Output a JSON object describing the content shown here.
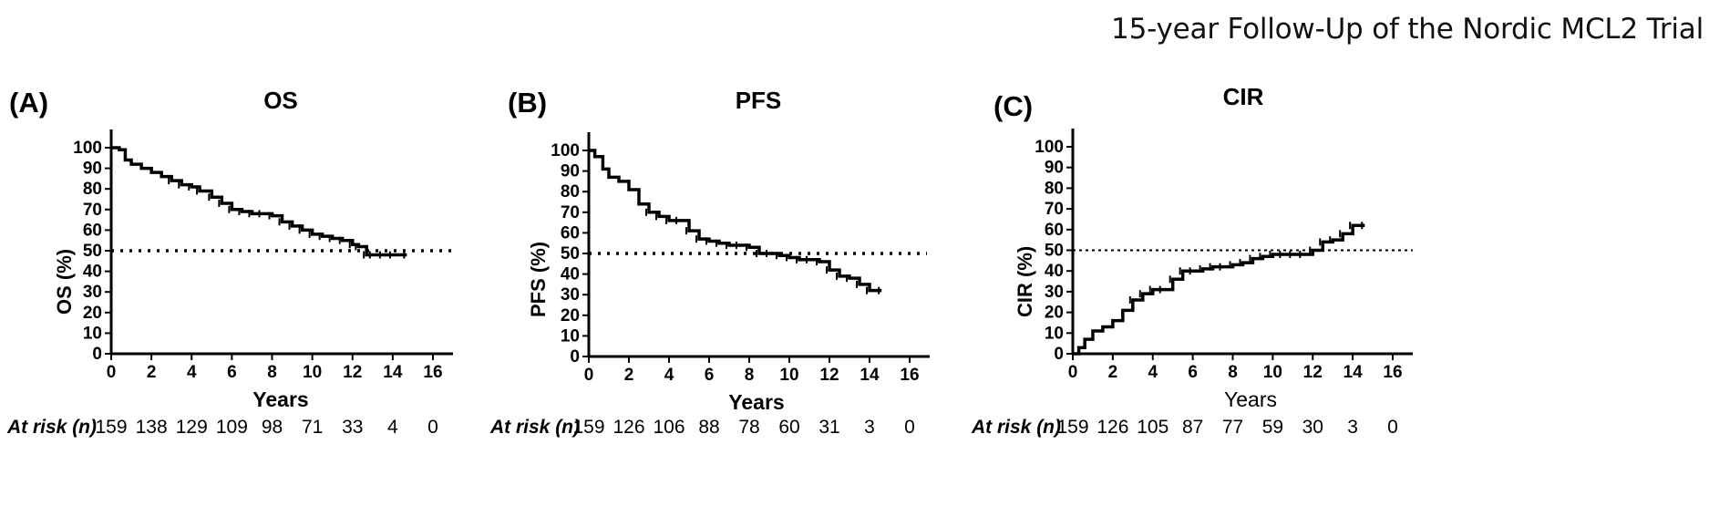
{
  "header": {
    "title": "15-year Follow-Up of the Nordic MCL2 Trial"
  },
  "chart_data": [
    {
      "type": "line",
      "panel": "(A)",
      "title": "OS",
      "xlabel": "Years",
      "ylabel": "OS (%)",
      "xlim": [
        0,
        16
      ],
      "ylim": [
        0,
        100
      ],
      "xticks": [
        0,
        2,
        4,
        6,
        8,
        10,
        12,
        14,
        16
      ],
      "yticks": [
        0,
        10,
        20,
        30,
        40,
        50,
        60,
        70,
        80,
        90,
        100
      ],
      "reference_line": 50,
      "series": [
        {
          "x": [
            0,
            0.4,
            0.7,
            1,
            1.5,
            2,
            2.5,
            3,
            3.5,
            4,
            4.4,
            5,
            5.5,
            6,
            6.5,
            7,
            7.5,
            8,
            8.5,
            9,
            9.5,
            10,
            10.5,
            11,
            11.5,
            12,
            12.3,
            12.7,
            13,
            13.5,
            14,
            14.7
          ],
          "y": [
            100,
            99,
            94,
            92,
            90,
            88,
            86,
            84,
            82,
            81,
            79,
            76,
            73,
            70,
            69,
            68,
            68,
            67,
            64,
            62,
            60,
            58,
            57,
            56,
            55,
            53,
            52,
            48,
            48,
            48,
            48,
            48
          ]
        }
      ],
      "at_risk": {
        "label": "At risk (n)",
        "times": [
          0,
          2,
          4,
          6,
          8,
          10,
          12,
          14,
          16
        ],
        "values": [
          "159",
          "138",
          "129",
          "109",
          "98",
          "71",
          "33",
          "4",
          "0"
        ]
      }
    },
    {
      "type": "line",
      "panel": "(B)",
      "title": "PFS",
      "xlabel": "Years",
      "ylabel": "PFS (%)",
      "xlim": [
        0,
        16
      ],
      "ylim": [
        0,
        100
      ],
      "xticks": [
        0,
        2,
        4,
        6,
        8,
        10,
        12,
        14,
        16
      ],
      "yticks": [
        0,
        10,
        20,
        30,
        40,
        50,
        60,
        70,
        80,
        90,
        100
      ],
      "reference_line": 50,
      "series": [
        {
          "x": [
            0,
            0.3,
            0.7,
            1,
            1.5,
            2,
            2.5,
            3,
            3.5,
            4,
            4.5,
            5,
            5.5,
            6,
            6.5,
            7,
            7.5,
            8,
            8.5,
            9,
            9.5,
            10,
            10.5,
            11,
            11.5,
            12,
            12.5,
            13,
            13.5,
            14,
            14.6
          ],
          "y": [
            100,
            97,
            91,
            87,
            85,
            81,
            74,
            70,
            68,
            66,
            66,
            61,
            57,
            56,
            55,
            54,
            54,
            53,
            50,
            50,
            49,
            48,
            47,
            47,
            46,
            42,
            39,
            38,
            35,
            32,
            32
          ]
        }
      ],
      "at_risk": {
        "label": "At risk (n)",
        "times": [
          0,
          2,
          4,
          6,
          8,
          10,
          12,
          14,
          16
        ],
        "values": [
          "159",
          "126",
          "106",
          "88",
          "78",
          "60",
          "31",
          "3",
          "0"
        ]
      }
    },
    {
      "type": "line",
      "panel": "(C)",
      "title": "CIR",
      "xlabel": "Years",
      "ylabel": "CIR (%)",
      "xlim": [
        0,
        16
      ],
      "ylim": [
        0,
        100
      ],
      "xticks": [
        0,
        2,
        4,
        6,
        8,
        10,
        12,
        14,
        16
      ],
      "yticks": [
        0,
        10,
        20,
        30,
        40,
        50,
        60,
        70,
        80,
        90,
        100
      ],
      "reference_line": 50,
      "series": [
        {
          "x": [
            0,
            0.3,
            0.6,
            1,
            1.5,
            2,
            2.5,
            3,
            3.5,
            4,
            4.5,
            5,
            5.5,
            6,
            6.5,
            7,
            7.5,
            8,
            8.5,
            9,
            9.5,
            10,
            10.5,
            11,
            11.5,
            12,
            12.5,
            13,
            13.5,
            14,
            14.6
          ],
          "y": [
            0,
            3,
            7,
            11,
            13,
            16,
            21,
            26,
            29,
            31,
            31,
            36,
            40,
            40,
            41,
            42,
            42,
            43,
            44,
            46,
            47,
            48,
            48,
            48,
            48,
            50,
            54,
            55,
            58,
            62,
            62
          ]
        }
      ],
      "at_risk": {
        "label": "At risk (n)",
        "times": [
          0,
          2,
          4,
          6,
          8,
          10,
          12,
          14,
          16
        ],
        "values": [
          "159",
          "126",
          "105",
          "87",
          "77",
          "59",
          "30",
          "3",
          "0"
        ]
      }
    }
  ]
}
